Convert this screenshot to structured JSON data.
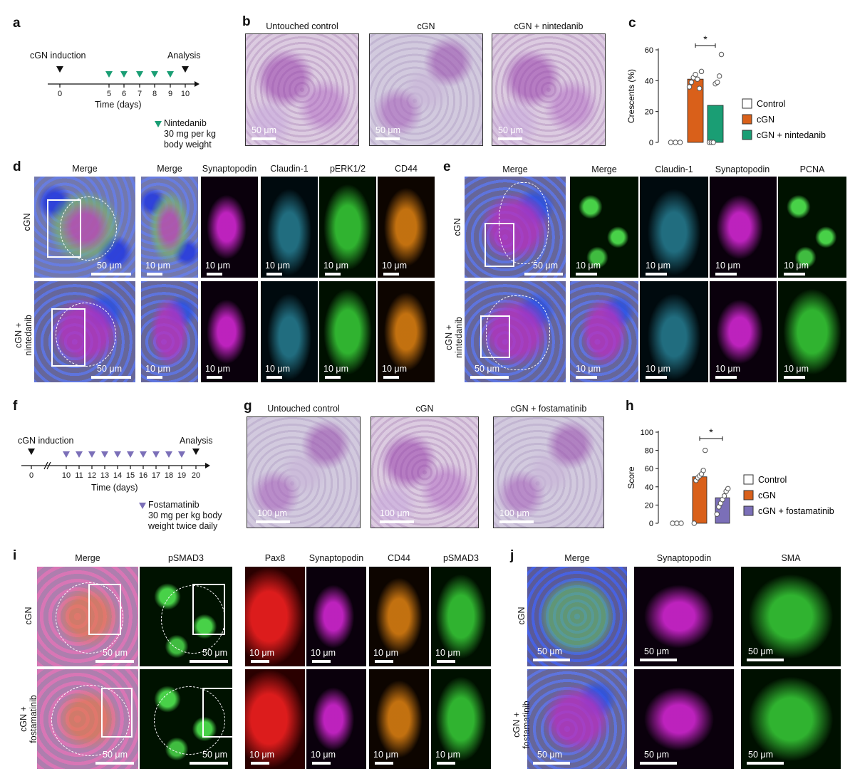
{
  "panels": {
    "a": {
      "label": "a",
      "induction": "cGN induction",
      "analysis": "Analysis",
      "ticks": [
        "0",
        "5",
        "6",
        "7",
        "8",
        "9",
        "10"
      ],
      "xlabel": "Time (days)",
      "drug_line1": "Nintedanib",
      "drug_line2": "30 mg per kg",
      "drug_line3": "body weight",
      "marker_color": "#1a9e74"
    },
    "b": {
      "label": "b",
      "titles": [
        "Untouched control",
        "cGN",
        "cGN + nintedanib"
      ],
      "scale": "50 μm"
    },
    "d": {
      "label": "d",
      "columns": [
        "Merge",
        "Merge",
        "Synaptopodin",
        "Claudin-1",
        "pERK1/2",
        "CD44"
      ],
      "row1": "cGN",
      "row2_line1": "cGN +",
      "row2_line2": "nintedanib",
      "scale_big": "50 μm",
      "scale_small": "10 μm"
    },
    "e": {
      "label": "e",
      "columns": [
        "Merge",
        "Merge",
        "Claudin-1",
        "Synaptopodin",
        "PCNA"
      ],
      "row1": "cGN",
      "row2_line1": "cGN +",
      "row2_line2": "nintedanib",
      "scale_big": "50 μm",
      "scale_small": "10 μm"
    },
    "f": {
      "label": "f",
      "induction": "cGN induction",
      "analysis": "Analysis",
      "ticks": [
        "0",
        "10",
        "11",
        "12",
        "13",
        "14",
        "15",
        "16",
        "17",
        "18",
        "19",
        "20"
      ],
      "xlabel": "Time (days)",
      "drug_line1": "Fostamatinib",
      "drug_line2": "30 mg per kg body",
      "drug_line3": "weight twice daily",
      "marker_color": "#7b6fb8"
    },
    "g": {
      "label": "g",
      "titles": [
        "Untouched control",
        "cGN",
        "cGN + fostamatinib"
      ],
      "scale": "100 μm"
    },
    "i": {
      "label": "i",
      "columns": [
        "Merge",
        "pSMAD3",
        "Pax8",
        "Synaptopodin",
        "CD44",
        "pSMAD3"
      ],
      "row1": "cGN",
      "row2_line1": "cGN +",
      "row2_line2": "fostamatinib",
      "scale_big": "50 μm",
      "scale_small": "10 μm"
    },
    "j": {
      "label": "j",
      "columns": [
        "Merge",
        "Synaptopodin",
        "SMA"
      ],
      "row1": "cGN",
      "row2_line1": "cGN +",
      "row2_line2": "fostamatinib",
      "scale_big": "50 μm"
    }
  },
  "chart_data": [
    {
      "panel": "c",
      "type": "bar",
      "ylabel": "Crescents (%)",
      "ylim": [
        0,
        60
      ],
      "yticks": [
        0,
        20,
        40,
        60
      ],
      "categories": [
        "Control",
        "cGN",
        "cGN + nintedanib"
      ],
      "values": [
        0,
        41,
        24
      ],
      "colors": [
        "#ffffff",
        "#d9601a",
        "#1a9e74"
      ],
      "points": [
        [
          0,
          0,
          0
        ],
        [
          36,
          39,
          42,
          44,
          41,
          35,
          46
        ],
        [
          0,
          0,
          0,
          38,
          39,
          43,
          57
        ]
      ],
      "significance": "*",
      "legend": [
        "Control",
        "cGN",
        "cGN + nintedanib"
      ]
    },
    {
      "panel": "h",
      "type": "bar",
      "ylabel": "Score",
      "ylim": [
        0,
        100
      ],
      "yticks": [
        0,
        20,
        40,
        60,
        80,
        100
      ],
      "categories": [
        "Control",
        "cGN",
        "cGN + fostamatinib"
      ],
      "values": [
        0,
        51,
        28
      ],
      "colors": [
        "#ffffff",
        "#d9601a",
        "#7b6fb8"
      ],
      "points": [
        [
          0,
          0,
          0
        ],
        [
          0,
          47,
          50,
          52,
          54,
          58,
          80
        ],
        [
          10,
          18,
          22,
          26,
          30,
          35,
          38
        ]
      ],
      "significance": "*",
      "legend": [
        "Control",
        "cGN",
        "cGN + fostamatinib"
      ]
    }
  ]
}
